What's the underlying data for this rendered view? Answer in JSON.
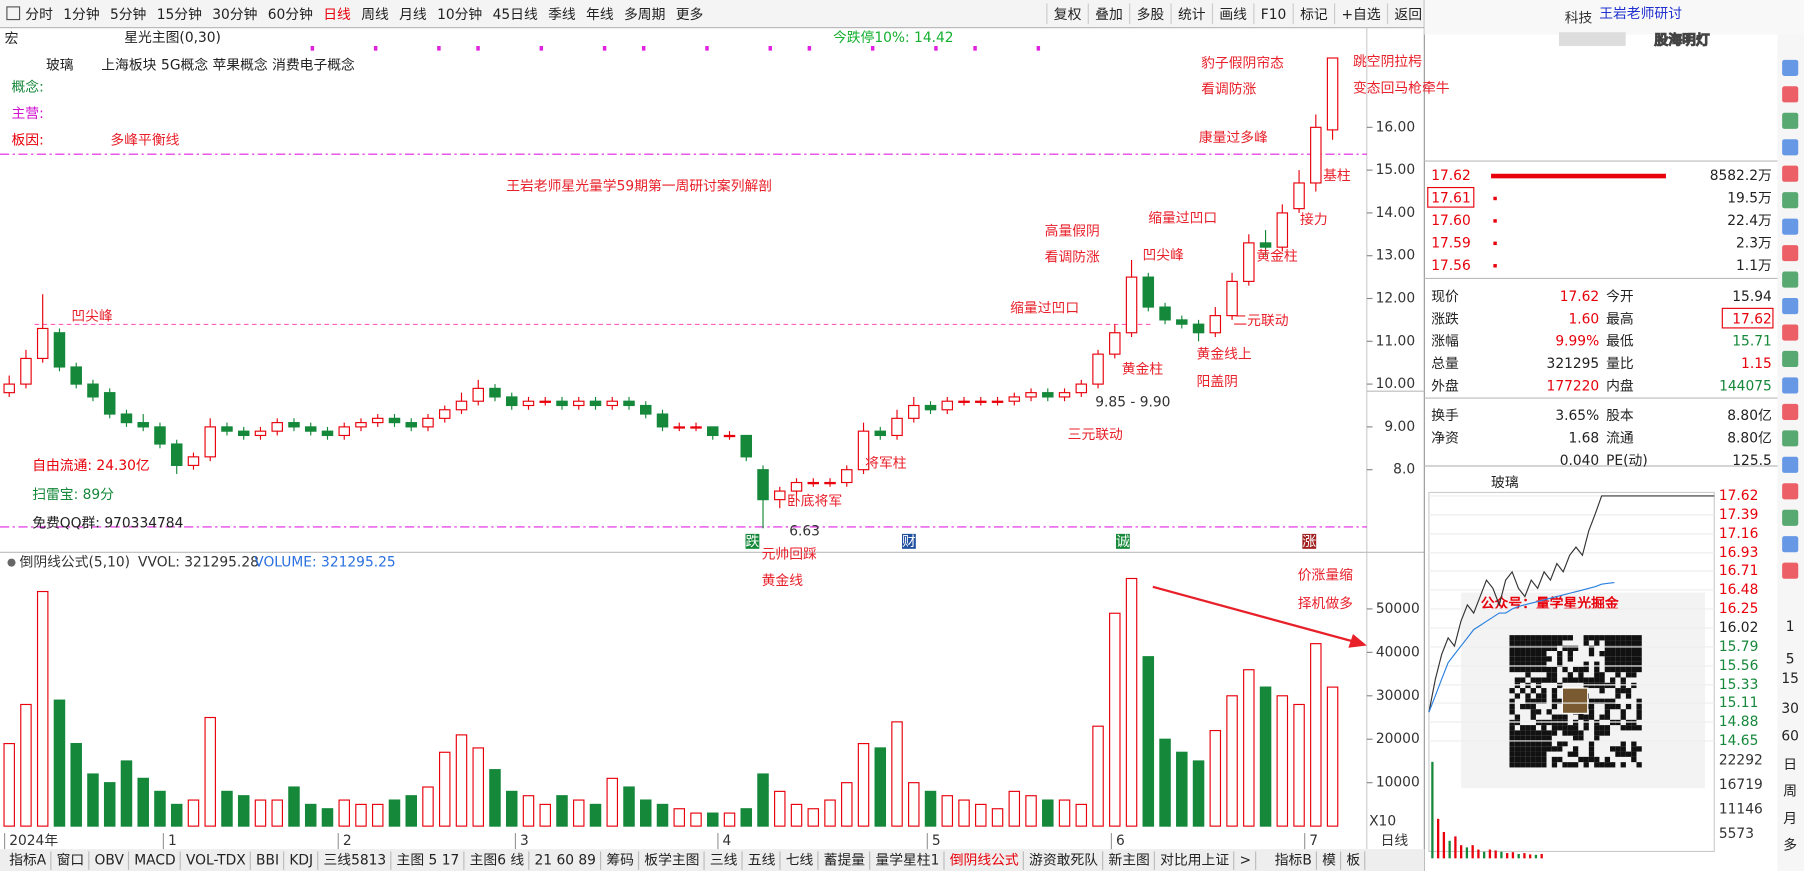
{
  "menu": [
    "分时",
    "1分钟",
    "5分钟",
    "15分钟",
    "30分钟",
    "60分钟",
    "日线",
    "周线",
    "月线",
    "10分钟",
    "45日线",
    "季线",
    "年线",
    "多周期",
    "更多"
  ],
  "toolbar_right": [
    "复权",
    "叠加",
    "多股",
    "统计",
    "画线",
    "F10",
    "标记",
    "+自选",
    "返回"
  ],
  "stock_info": {
    "code_prefix": "宏",
    "title": "星光主图(0,30)",
    "name": "玻璃",
    "board": "上海板块",
    "concepts": "5G概念 苹果概念 消费电子概念",
    "labels": [
      "概念:",
      "主营:",
      "板因:"
    ],
    "float": "自由流通: 24.30亿",
    "scan": "扫雷宝: 89分",
    "qq": "免费QQ群: 970334784",
    "limit": "今跌停10%: 14.42"
  },
  "chart_data": {
    "type": "candlestick",
    "candles": [
      [
        9.8,
        10.2,
        9.7,
        10.0
      ],
      [
        10.0,
        10.8,
        9.9,
        10.6
      ],
      [
        10.6,
        12.1,
        10.5,
        11.3
      ],
      [
        11.2,
        11.3,
        10.3,
        10.4
      ],
      [
        10.4,
        10.5,
        9.9,
        10.0
      ],
      [
        10.0,
        10.1,
        9.6,
        9.7
      ],
      [
        9.8,
        9.9,
        9.2,
        9.3
      ],
      [
        9.3,
        9.4,
        9.0,
        9.1
      ],
      [
        9.1,
        9.3,
        8.9,
        9.0
      ],
      [
        9.0,
        9.1,
        8.5,
        8.6
      ],
      [
        8.6,
        8.7,
        7.9,
        8.1
      ],
      [
        8.1,
        8.4,
        8.0,
        8.3
      ],
      [
        8.3,
        9.2,
        8.2,
        9.0
      ],
      [
        9.0,
        9.1,
        8.8,
        8.9
      ],
      [
        8.9,
        9.0,
        8.7,
        8.8
      ],
      [
        8.8,
        9.0,
        8.7,
        8.9
      ],
      [
        8.9,
        9.2,
        8.8,
        9.1
      ],
      [
        9.1,
        9.2,
        8.9,
        9.0
      ],
      [
        9.0,
        9.1,
        8.8,
        8.9
      ],
      [
        8.9,
        9.0,
        8.7,
        8.8
      ],
      [
        8.8,
        9.1,
        8.7,
        9.0
      ],
      [
        9.0,
        9.2,
        8.9,
        9.1
      ],
      [
        9.1,
        9.3,
        9.0,
        9.2
      ],
      [
        9.2,
        9.3,
        9.0,
        9.1
      ],
      [
        9.1,
        9.2,
        8.9,
        9.0
      ],
      [
        9.0,
        9.3,
        8.9,
        9.2
      ],
      [
        9.2,
        9.5,
        9.1,
        9.4
      ],
      [
        9.4,
        9.8,
        9.3,
        9.6
      ],
      [
        9.6,
        10.1,
        9.5,
        9.9
      ],
      [
        9.9,
        10.0,
        9.6,
        9.7
      ],
      [
        9.7,
        9.8,
        9.4,
        9.5
      ],
      [
        9.5,
        9.7,
        9.4,
        9.6
      ],
      [
        9.6,
        9.7,
        9.5,
        9.6
      ],
      [
        9.6,
        9.7,
        9.4,
        9.5
      ],
      [
        9.5,
        9.7,
        9.4,
        9.6
      ],
      [
        9.6,
        9.7,
        9.4,
        9.5
      ],
      [
        9.5,
        9.7,
        9.4,
        9.6
      ],
      [
        9.6,
        9.7,
        9.4,
        9.5
      ],
      [
        9.5,
        9.6,
        9.2,
        9.3
      ],
      [
        9.3,
        9.4,
        8.9,
        9.0
      ],
      [
        9.0,
        9.1,
        8.9,
        9.0
      ],
      [
        9.0,
        9.1,
        8.9,
        9.0
      ],
      [
        9.0,
        9.0,
        8.7,
        8.8
      ],
      [
        8.8,
        8.9,
        8.7,
        8.8
      ],
      [
        8.8,
        8.8,
        8.2,
        8.3
      ],
      [
        8.0,
        8.1,
        6.63,
        7.3
      ],
      [
        7.3,
        7.6,
        7.1,
        7.5
      ],
      [
        7.5,
        7.8,
        7.4,
        7.7
      ],
      [
        7.7,
        7.8,
        7.6,
        7.7
      ],
      [
        7.7,
        7.8,
        7.6,
        7.7
      ],
      [
        7.7,
        8.1,
        7.6,
        8.0
      ],
      [
        8.0,
        9.1,
        7.9,
        8.9
      ],
      [
        8.9,
        9.0,
        8.7,
        8.8
      ],
      [
        8.8,
        9.4,
        8.7,
        9.2
      ],
      [
        9.2,
        9.7,
        9.1,
        9.5
      ],
      [
        9.5,
        9.6,
        9.3,
        9.4
      ],
      [
        9.4,
        9.7,
        9.3,
        9.6
      ],
      [
        9.6,
        9.7,
        9.5,
        9.6
      ],
      [
        9.6,
        9.7,
        9.5,
        9.6
      ],
      [
        9.6,
        9.7,
        9.5,
        9.6
      ],
      [
        9.6,
        9.8,
        9.5,
        9.7
      ],
      [
        9.7,
        9.9,
        9.6,
        9.8
      ],
      [
        9.8,
        9.9,
        9.6,
        9.7
      ],
      [
        9.7,
        9.9,
        9.6,
        9.8
      ],
      [
        9.8,
        10.1,
        9.7,
        10.0
      ],
      [
        10.0,
        10.8,
        9.9,
        10.7
      ],
      [
        10.7,
        11.4,
        10.6,
        11.2
      ],
      [
        11.2,
        12.9,
        11.1,
        12.5
      ],
      [
        12.5,
        12.6,
        11.7,
        11.8
      ],
      [
        11.8,
        11.9,
        11.4,
        11.5
      ],
      [
        11.5,
        11.6,
        11.3,
        11.4
      ],
      [
        11.4,
        11.5,
        11.0,
        11.2
      ],
      [
        11.2,
        11.8,
        11.1,
        11.6
      ],
      [
        11.6,
        12.6,
        11.5,
        12.4
      ],
      [
        12.4,
        13.5,
        12.3,
        13.3
      ],
      [
        13.3,
        13.6,
        13.0,
        13.2
      ],
      [
        13.2,
        14.2,
        13.1,
        14.0
      ],
      [
        14.1,
        15.0,
        14.0,
        14.7
      ],
      [
        14.7,
        16.3,
        14.5,
        16.0
      ],
      [
        15.94,
        17.62,
        15.71,
        17.62
      ]
    ],
    "ylim": [
      6.5,
      17.9
    ],
    "yticks": [
      {
        "value": 8,
        "label": "8.0"
      },
      {
        "value": 9,
        "label": "9.00"
      },
      {
        "value": 10,
        "label": "10.00"
      },
      {
        "value": 11,
        "label": "11.00"
      },
      {
        "value": 12,
        "label": "12.00"
      },
      {
        "value": 13,
        "label": "13.00"
      },
      {
        "value": 14,
        "label": "14.00"
      },
      {
        "value": 15,
        "label": "15.00"
      },
      {
        "value": 16,
        "label": "16.00"
      }
    ],
    "colors": {
      "up": "#e8000b",
      "down": "#15883a"
    },
    "month_labels": [
      "2024年",
      "1",
      "2",
      "3",
      "4",
      "5",
      "6",
      "7"
    ],
    "event_icons": [
      "跌",
      "财",
      "诚",
      "涨"
    ],
    "annotations": [
      "凹尖峰",
      "多峰平衡线",
      "王岩老师星光量学59期第一周研讨案列解剖",
      "卧底将军",
      "元帅回踩",
      "黄金线",
      "将军柱",
      "三元联动",
      "9.85 - 9.90",
      "6.63",
      "黄金柱",
      "缩量过凹口",
      "高量假阴",
      "看调防涨",
      "凹尖峰",
      "缩量过凹口",
      "黄金线上",
      "阳盖阴",
      "二元联动",
      "黄金柱",
      "接力",
      "基柱",
      "康量过多峰",
      "豹子假阴帘态",
      "看调防涨",
      "跳空阴拉枵",
      "变态回马枪牵牛",
      "价涨量缩",
      "择机做多"
    ],
    "axis_unit": "日线",
    "volume": {
      "title": "倒阴线公式(5,10)",
      "vvol": "VVOL: 321295.28",
      "vol": "VOLUME: 321295.25",
      "scale": "X10",
      "values": [
        19000,
        28000,
        54000,
        29000,
        19000,
        12000,
        10000,
        15000,
        11000,
        8000,
        5000,
        6000,
        25000,
        8000,
        7000,
        6000,
        6000,
        9000,
        5000,
        4000,
        6000,
        5000,
        5000,
        6000,
        7000,
        9000,
        17000,
        21000,
        18000,
        13000,
        8000,
        7000,
        5000,
        7000,
        6000,
        5000,
        11000,
        9000,
        6000,
        5000,
        4000,
        3000,
        3000,
        3000,
        4000,
        12000,
        8000,
        5000,
        4000,
        6000,
        10000,
        19000,
        18000,
        24000,
        10000,
        8000,
        7000,
        6000,
        5000,
        4000,
        8000,
        7000,
        6000,
        6000,
        5000,
        23000,
        49000,
        57000,
        39000,
        20000,
        17000,
        15000,
        22000,
        30000,
        36000,
        32000,
        30000,
        28000,
        42000,
        32000
      ],
      "ylim": [
        0,
        58000
      ],
      "yticks": [
        10000,
        20000,
        30000,
        40000,
        50000
      ]
    }
  },
  "right_panel": {
    "header": "王岩老师研讨",
    "stock": "科技",
    "watermark": "股海明灯",
    "order_book": [
      [
        "17.62",
        "8582.2万"
      ],
      [
        "17.61",
        "19.5万"
      ],
      [
        "17.60",
        "22.4万"
      ],
      [
        "17.59",
        "2.3万"
      ],
      [
        "17.56",
        "1.1万"
      ]
    ],
    "stats": [
      [
        "现价",
        "17.62",
        "今开",
        "15.94"
      ],
      [
        "涨跌",
        "1.60",
        "最高",
        "17.62"
      ],
      [
        "涨幅",
        "9.99%",
        "最低",
        "15.71"
      ],
      [
        "总量",
        "321295",
        "量比",
        "1.15"
      ],
      [
        "外盘",
        "177220",
        "内盘",
        "144075"
      ],
      [
        "换手",
        "3.65%",
        "股本",
        "8.80亿"
      ],
      [
        "净资",
        "1.68",
        "流通",
        "8.80亿"
      ],
      [
        "0.040",
        "PE(动)",
        "125.5"
      ]
    ],
    "mini_chart": {
      "title": "玻璃",
      "prices": [
        15.0,
        15.4,
        15.7,
        15.9,
        15.8,
        16.1,
        16.3,
        16.2,
        16.4,
        16.6,
        16.5,
        16.3,
        16.6,
        16.7,
        16.5,
        16.4,
        16.6,
        16.5,
        16.7,
        16.6,
        16.8,
        16.7,
        16.9,
        17.0,
        16.9,
        17.2,
        17.4,
        17.62,
        17.62,
        17.62
      ],
      "avg": [
        15.0,
        15.2,
        15.4,
        15.6,
        15.7,
        15.8,
        15.9,
        16.0,
        16.05,
        16.1,
        16.15,
        16.2,
        16.2,
        16.25,
        16.28,
        16.3,
        16.32,
        16.34,
        16.36,
        16.38,
        16.4,
        16.42,
        16.44,
        16.46,
        16.48,
        16.5,
        16.52,
        16.55,
        16.56,
        16.57
      ],
      "ylim": [
        14.65,
        17.62
      ],
      "yticks": [
        17.62,
        17.39,
        17.16,
        16.93,
        16.71,
        16.48,
        16.25,
        16.02,
        15.79,
        15.56,
        15.33,
        15.11,
        14.88,
        14.65
      ],
      "volumes": [
        22000,
        9000,
        6000,
        4000,
        5000,
        3000,
        2500,
        3000,
        2000,
        1500,
        2000,
        1800,
        1500,
        1200,
        1400,
        1000,
        1200,
        900,
        800,
        1000
      ],
      "vol_ylim": [
        0,
        22292
      ],
      "vol_yticks": [
        22292,
        16719,
        11146,
        5573
      ]
    },
    "qr_caption": "公众号：量学星光掘金",
    "side_icons": [
      "1",
      "5",
      "15",
      "30",
      "60",
      "日",
      "周",
      "月",
      "多"
    ]
  },
  "bottom_tabs": [
    "指标A",
    "窗口",
    "OBV",
    "MACD",
    "VOL-TDX",
    "BBI",
    "KDJ",
    "三线5813",
    "主图 5 17",
    "主图6 线",
    "21 60 89",
    "筹码",
    "板学主图",
    "三线",
    "五线",
    "七线",
    "蓄提量",
    "量学星柱1",
    "倒阴线公式",
    "游资敢死队",
    "新主图",
    "对比用上证",
    ">",
    "指标B",
    "模",
    "板"
  ]
}
